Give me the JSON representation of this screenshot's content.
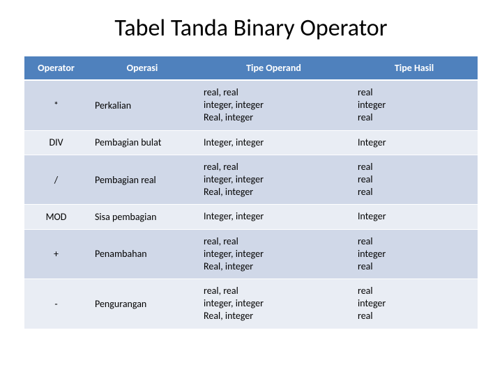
{
  "title": "Tabel Tanda Binary Operator",
  "table": {
    "headers": [
      "Operator",
      "Operasi",
      "Tipe Operand",
      "Tipe Hasil"
    ],
    "rows": [
      {
        "op": "*",
        "name": "Perkalian",
        "operand": "real, real\ninteger, integer\nReal, integer",
        "result": "real\ninteger\nreal"
      },
      {
        "op": "DIV",
        "name": "Pembagian bulat",
        "operand": "Integer, integer",
        "result": "Integer"
      },
      {
        "op": "/",
        "name": "Pembagian real",
        "operand": "real, real\ninteger, integer\nReal, integer",
        "result": "real\nreal\nreal"
      },
      {
        "op": "MOD",
        "name": "Sisa pembagian",
        "operand": "Integer, integer",
        "result": "Integer"
      },
      {
        "op": "+",
        "name": "Penambahan",
        "operand": "real, real\ninteger, integer\nReal, integer",
        "result": "real\ninteger\nreal"
      },
      {
        "op": "-",
        "name": "Pengurangan",
        "operand": "real, real\ninteger, integer\nReal, integer",
        "result": "real\ninteger\nreal"
      }
    ]
  },
  "colors": {
    "header_bg": "#4f81bd",
    "header_text": "#ffffff",
    "row_odd_bg": "#d0d8e8",
    "row_even_bg": "#e9edf4",
    "text": "#000000",
    "page_bg": "#ffffff"
  },
  "typography": {
    "title_fontsize": 34,
    "table_fontsize": 14,
    "font_family": "Calibri"
  }
}
